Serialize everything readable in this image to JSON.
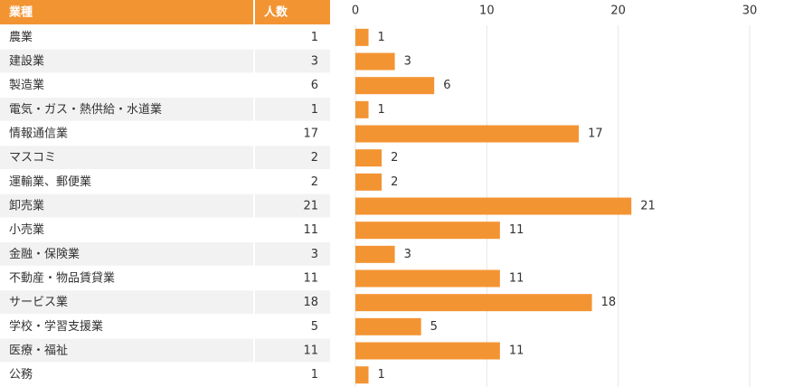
{
  "chart_data": {
    "type": "bar",
    "orientation": "horizontal",
    "columns": [
      "業種",
      "人数"
    ],
    "categories": [
      "農業",
      "建設業",
      "製造業",
      "電気・ガス・熱供給・水道業",
      "情報通信業",
      "マスコミ",
      "運輸業、郵便業",
      "卸売業",
      "小売業",
      "金融・保険業",
      "不動産・物品賃貸業",
      "サービス業",
      "学校・学習支援業",
      "医療・福祉",
      "公務"
    ],
    "values": [
      1,
      3,
      6,
      1,
      17,
      2,
      2,
      21,
      11,
      3,
      11,
      18,
      5,
      11,
      1
    ],
    "color": "#f39433",
    "header_color": "#f39433",
    "xlim": [
      0,
      30
    ],
    "xticks": [
      0,
      10,
      20,
      30
    ],
    "grid": true
  }
}
